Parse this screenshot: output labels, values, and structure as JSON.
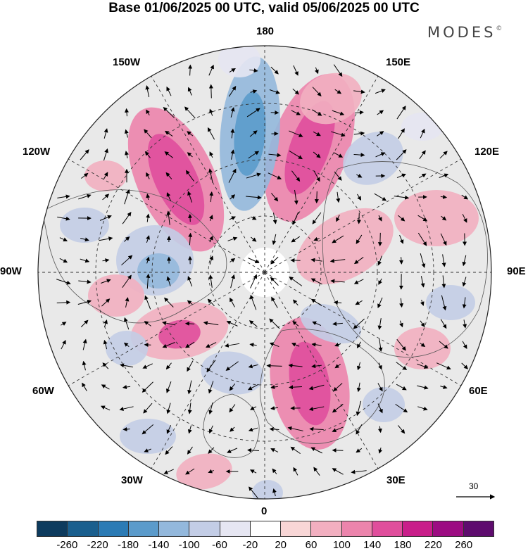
{
  "title": "Base 01/06/2025 00 UTC, valid 05/06/2025 00 UTC",
  "brand": "MODES",
  "brand_mark": "©",
  "longitude_labels": {
    "top": "180",
    "bottom": "0",
    "left": "90W",
    "right": "90E",
    "upper_left_150": "150W",
    "upper_right_150": "150E",
    "upper_left_120": "120W",
    "upper_right_120": "120E",
    "lower_left_60": "60W",
    "lower_right_60": "60E",
    "lower_left_30": "30W",
    "lower_right_30": "30E"
  },
  "vector_reference": {
    "value": "30"
  },
  "colorbar": {
    "colors": [
      "#0d3b5e",
      "#1a5f8e",
      "#2b7bb5",
      "#5b9bcb",
      "#93b8dc",
      "#c3cde6",
      "#e6e6f2",
      "#ffffff",
      "#f8d6d6",
      "#f2afc0",
      "#ec84ac",
      "#e04e9c",
      "#c91e8a",
      "#9c0c82",
      "#5e0c6e"
    ],
    "tick_labels": [
      "-260",
      "-220",
      "-180",
      "-140",
      "-100",
      "-60",
      "-20",
      "20",
      "60",
      "100",
      "140",
      "180",
      "220",
      "260"
    ]
  }
}
